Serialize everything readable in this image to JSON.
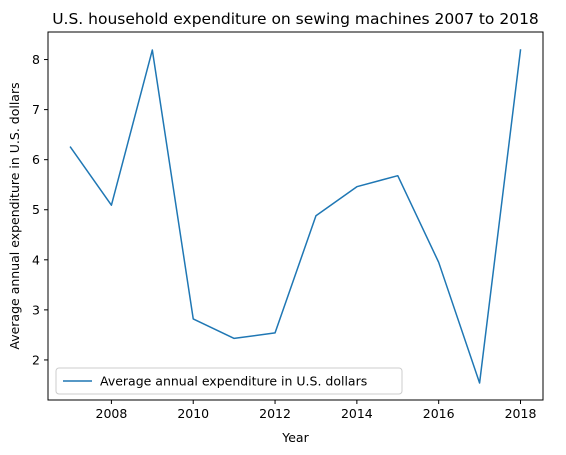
{
  "chart_data": {
    "type": "line",
    "title": "U.S. household expenditure on sewing machines 2007 to 2018",
    "xlabel": "Year",
    "ylabel": "Average annual expenditure in U.S. dollars",
    "xlim": [
      2006.45,
      2018.55
    ],
    "ylim": [
      1.2,
      8.55
    ],
    "x_ticks": [
      2008,
      2010,
      2012,
      2014,
      2016,
      2018
    ],
    "y_ticks": [
      2,
      3,
      4,
      5,
      6,
      7,
      8
    ],
    "grid": false,
    "legend_position": "lower-left",
    "series": [
      {
        "name": "Average annual expenditure in U.S. dollars",
        "color": "#1f77b4",
        "x": [
          2007,
          2008,
          2009,
          2010,
          2011,
          2012,
          2013,
          2014,
          2015,
          2016,
          2017,
          2018
        ],
        "y": [
          6.25,
          5.09,
          8.19,
          2.82,
          2.43,
          2.54,
          4.88,
          5.46,
          5.68,
          3.95,
          1.54,
          8.19
        ]
      }
    ]
  }
}
